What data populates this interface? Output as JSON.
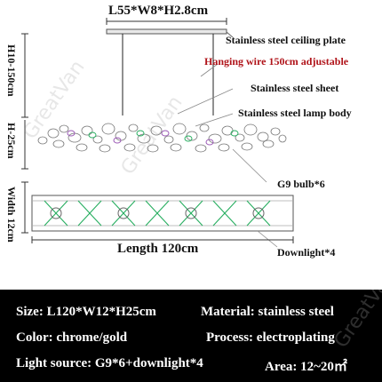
{
  "diagram": {
    "top_dimension": "L55*W8*H2.8cm",
    "ceiling_plate": "Stainless steel ceiling plate",
    "hanging_wire": "Hanging wire 150cm adjustable",
    "sheet": "Stainless steel sheet",
    "lamp_body": "Stainless steel lamp body",
    "bulb": "G9 bulb*6",
    "downlight": "Downlight*4",
    "length": "Length 120cm",
    "height_range": "H10-150cm",
    "body_height": "H-25cm",
    "width": "Width 12cm",
    "watermark": "GreatVan"
  },
  "specs": {
    "size": "Size: L120*W12*H25cm",
    "material": "Material: stainless steel",
    "color": "Color: chrome/gold",
    "process": "Process: electroplating",
    "light_source": "Light source: G9*6+downlight*4",
    "area": "Area: 12~20㎡"
  },
  "colors": {
    "label_red": "#b0141a",
    "spec_background": "#000000"
  }
}
